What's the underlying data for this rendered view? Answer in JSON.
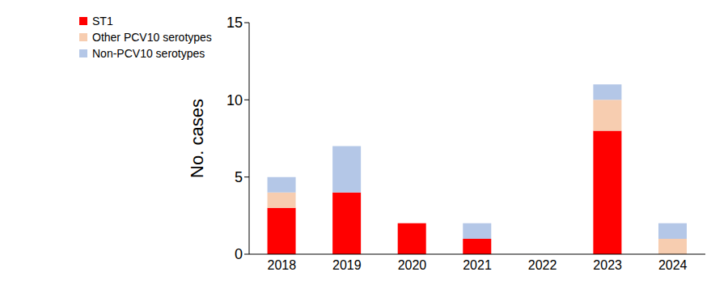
{
  "chart_data": {
    "type": "bar",
    "stacked": true,
    "y_label": "No. cases",
    "categories": [
      "2018",
      "2019",
      "2020",
      "2021",
      "2022",
      "2023",
      "2024"
    ],
    "series": [
      {
        "name": "ST1",
        "color": "#ff0000",
        "values": [
          3,
          4,
          2,
          1,
          0,
          8,
          0
        ]
      },
      {
        "name": "Other PCV10 serotypes",
        "color": "#f7cdb0",
        "values": [
          1,
          0,
          0,
          0,
          0,
          2,
          1
        ]
      },
      {
        "name": "Non-PCV10 serotypes",
        "color": "#b4c7e7",
        "values": [
          1,
          3,
          0,
          1,
          0,
          1,
          1
        ]
      }
    ],
    "ylim": [
      0,
      15
    ],
    "yticks": [
      0,
      5,
      10,
      15
    ],
    "grid": false,
    "legend": "top-left"
  }
}
